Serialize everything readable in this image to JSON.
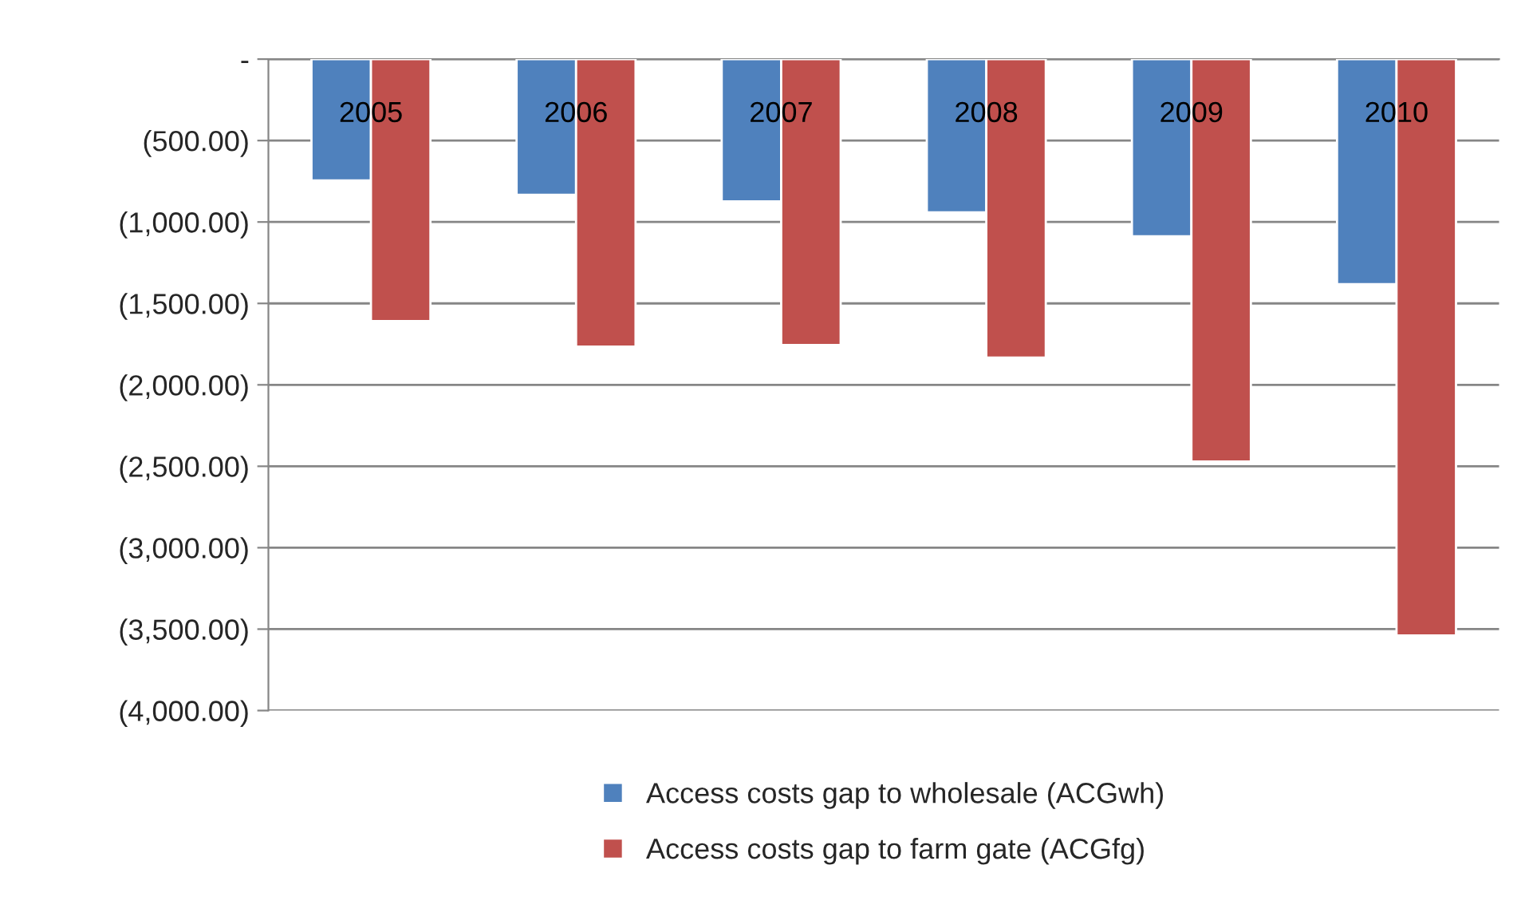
{
  "chart_data": {
    "type": "bar",
    "categories": [
      "2005",
      "2006",
      "2007",
      "2008",
      "2009",
      "2010"
    ],
    "series": [
      {
        "name": "Access costs gap to wholesale (ACGwh)",
        "color": "#4f81bd",
        "values": [
          -745,
          -833,
          -873,
          -941,
          -1088,
          -1382
        ]
      },
      {
        "name": "Access costs gap to farm gate (ACGfg)",
        "color": "#c0504d",
        "values": [
          -1608,
          -1765,
          -1755,
          -1833,
          -2471,
          -3539
        ]
      }
    ],
    "ylim": [
      -4000,
      0
    ],
    "yticks": [
      {
        "value": 0,
        "label": "-"
      },
      {
        "value": -500,
        "label": "(500.00)"
      },
      {
        "value": -1000,
        "label": "(1,000.00)"
      },
      {
        "value": -1500,
        "label": "(1,500.00)"
      },
      {
        "value": -2000,
        "label": "(2,000.00)"
      },
      {
        "value": -2500,
        "label": "(2,500.00)"
      },
      {
        "value": -3000,
        "label": "(3,000.00)"
      },
      {
        "value": -3500,
        "label": "(3,500.00)"
      },
      {
        "value": -4000,
        "label": "(4,000.00)"
      }
    ],
    "grid": "y",
    "legend": "bottom"
  }
}
